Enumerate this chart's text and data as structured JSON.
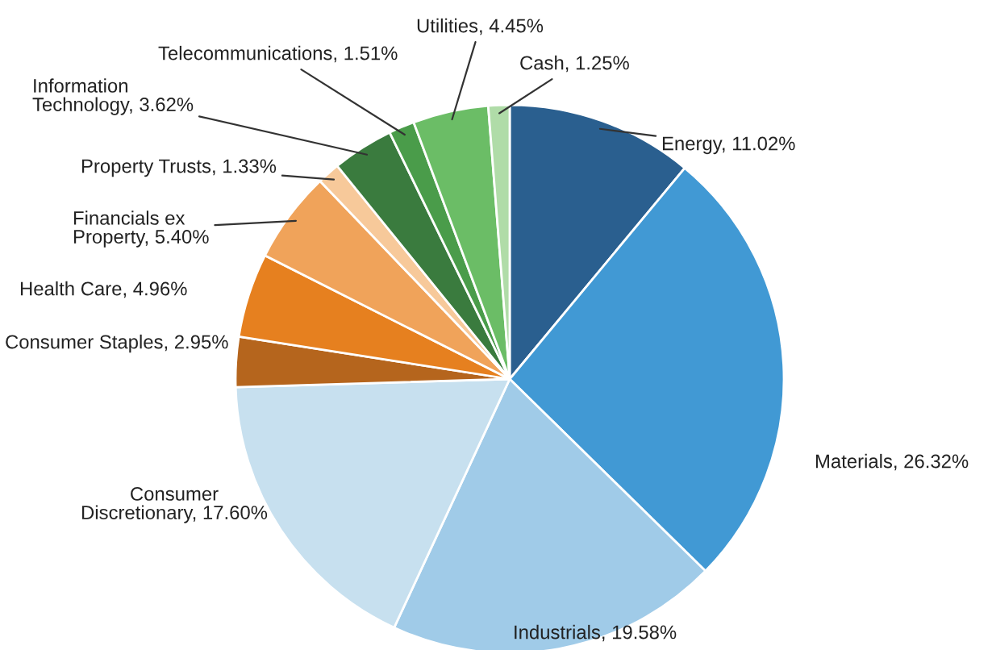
{
  "chart_data": {
    "type": "pie",
    "categories": [
      "Energy",
      "Materials",
      "Industrials",
      "Consumer Discretionary",
      "Consumer Staples",
      "Health Care",
      "Financials ex Property",
      "Property Trusts",
      "Information Technology",
      "Telecommunications",
      "Utilities",
      "Cash"
    ],
    "values": [
      11.02,
      26.32,
      19.58,
      17.6,
      2.95,
      4.96,
      5.4,
      1.33,
      3.62,
      1.51,
      4.45,
      1.25
    ],
    "colors": [
      "#2a5f8f",
      "#4199d4",
      "#a0cbe8",
      "#c7e0ef",
      "#b5651d",
      "#e6801f",
      "#f0a35a",
      "#f7c99a",
      "#3a7b3e",
      "#4a9c4a",
      "#6bbd66",
      "#b0dca8"
    ],
    "value_labels": [
      "11.02%",
      "26.32%",
      "19.58%",
      "17.60%",
      "2.95%",
      "4.96%",
      "5.40%",
      "1.33%",
      "3.62%",
      "1.51%",
      "4.45%",
      "1.25%"
    ],
    "legend": false
  }
}
